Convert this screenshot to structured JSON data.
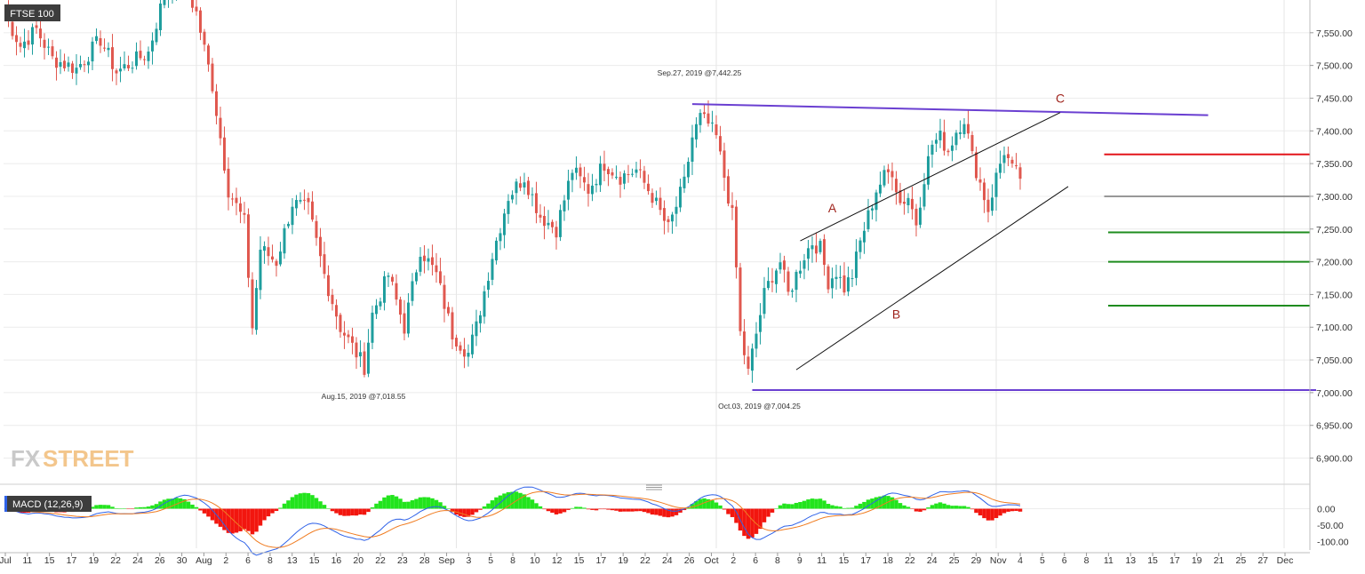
{
  "symbol": "FTSE 100",
  "macd_label": "MACD (12,26,9)",
  "watermark": {
    "part1": "FX",
    "part2": "STREET"
  },
  "colors": {
    "up": "#1f9e9e",
    "down": "#e0584f",
    "resistance": "#6a3fd1",
    "support_low": "#6a3fd1",
    "red_level": "#e3151a",
    "green_level": "#1e8c1e",
    "grey_level": "#777777",
    "macd_line": "#2f62e8",
    "signal_line": "#f07c21",
    "hist_pos": "#22e41d",
    "hist_neg": "#f2160f",
    "wave_label": "#a0261f"
  },
  "chart_data": {
    "type": "candlestick",
    "price_axis": {
      "min": 6860,
      "max": 7600,
      "ticks": [
        "6,900.00",
        "6,950.00",
        "7,000.00",
        "7,050.00",
        "7,100.00",
        "7,150.00",
        "7,200.00",
        "7,250.00",
        "7,300.00",
        "7,350.00",
        "7,400.00",
        "7,450.00",
        "7,500.00",
        "7,550.00"
      ]
    },
    "macd_axis": {
      "min": -120,
      "max": 50,
      "ticks": [
        "0.00",
        "-50.00",
        "-100.00"
      ]
    },
    "x_ticks": [
      "Jul",
      "11",
      "15",
      "17",
      "19",
      "22",
      "24",
      "26",
      "30",
      "Aug",
      "2",
      "6",
      "8",
      "13",
      "15",
      "16",
      "20",
      "22",
      "23",
      "28",
      "Sep",
      "3",
      "5",
      "8",
      "10",
      "12",
      "15",
      "17",
      "19",
      "22",
      "24",
      "26",
      "Oct",
      "2",
      "6",
      "8",
      "9",
      "11",
      "15",
      "17",
      "18",
      "22",
      "24",
      "25",
      "29",
      "Nov",
      "4",
      "5",
      "6",
      "8",
      "11",
      "13",
      "15",
      "17",
      "19",
      "21",
      "25",
      "27",
      "Dec"
    ],
    "anchors": [
      [
        0,
        7580
      ],
      [
        4,
        7530
      ],
      [
        8,
        7555
      ],
      [
        12,
        7510
      ],
      [
        18,
        7495
      ],
      [
        24,
        7540
      ],
      [
        28,
        7490
      ],
      [
        36,
        7520
      ],
      [
        40,
        7610
      ],
      [
        44,
        7640
      ],
      [
        48,
        7580
      ],
      [
        52,
        7470
      ],
      [
        56,
        7310
      ],
      [
        60,
        7260
      ],
      [
        62,
        7100
      ],
      [
        64,
        7220
      ],
      [
        68,
        7200
      ],
      [
        72,
        7290
      ],
      [
        76,
        7280
      ],
      [
        80,
        7180
      ],
      [
        84,
        7100
      ],
      [
        88,
        7060
      ],
      [
        90,
        7040
      ],
      [
        92,
        7120
      ],
      [
        96,
        7180
      ],
      [
        100,
        7100
      ],
      [
        104,
        7220
      ],
      [
        108,
        7180
      ],
      [
        112,
        7090
      ],
      [
        116,
        7060
      ],
      [
        118,
        7100
      ],
      [
        122,
        7210
      ],
      [
        126,
        7300
      ],
      [
        130,
        7330
      ],
      [
        134,
        7270
      ],
      [
        138,
        7250
      ],
      [
        142,
        7340
      ],
      [
        146,
        7310
      ],
      [
        150,
        7350
      ],
      [
        154,
        7330
      ],
      [
        158,
        7340
      ],
      [
        162,
        7300
      ],
      [
        166,
        7250
      ],
      [
        170,
        7320
      ],
      [
        172,
        7390
      ],
      [
        174,
        7420
      ],
      [
        176,
        7410
      ],
      [
        178,
        7390
      ],
      [
        180,
        7330
      ],
      [
        182,
        7270
      ],
      [
        183,
        7190
      ],
      [
        184,
        7090
      ],
      [
        186,
        7030
      ],
      [
        188,
        7090
      ],
      [
        190,
        7150
      ],
      [
        192,
        7180
      ],
      [
        194,
        7200
      ],
      [
        196,
        7150
      ],
      [
        198,
        7180
      ],
      [
        200,
        7210
      ],
      [
        202,
        7230
      ],
      [
        204,
        7220
      ],
      [
        206,
        7170
      ],
      [
        208,
        7185
      ],
      [
        210,
        7160
      ],
      [
        212,
        7180
      ],
      [
        214,
        7230
      ],
      [
        216,
        7270
      ],
      [
        218,
        7310
      ],
      [
        220,
        7330
      ],
      [
        222,
        7340
      ],
      [
        224,
        7290
      ],
      [
        226,
        7300
      ],
      [
        228,
        7260
      ],
      [
        230,
        7330
      ],
      [
        232,
        7380
      ],
      [
        234,
        7390
      ],
      [
        236,
        7370
      ],
      [
        238,
        7400
      ],
      [
        240,
        7420
      ],
      [
        242,
        7360
      ],
      [
        244,
        7320
      ],
      [
        246,
        7280
      ],
      [
        248,
        7330
      ],
      [
        250,
        7370
      ],
      [
        252,
        7340
      ],
      [
        254,
        7330
      ]
    ],
    "annotations": [
      {
        "label": "Sep.27, 2019 @7,442.25",
        "i": 172,
        "price": 7442.25
      },
      {
        "label": "Aug.15, 2019 @7,018.55",
        "i": 88,
        "price": 7018.55
      },
      {
        "label": "Oct.03, 2019 @7,004.25",
        "i": 187,
        "price": 7004.25
      }
    ],
    "waves": [
      {
        "label": "A",
        "i": 207,
        "price": 7270
      },
      {
        "label": "B",
        "i": 223,
        "price": 7108
      },
      {
        "label": "C",
        "i": 264,
        "price": 7438
      }
    ],
    "trendlines": [
      {
        "role": "resistance",
        "from": [
          172,
          7441
        ],
        "to": [
          301,
          7424
        ]
      },
      {
        "role": "support_low",
        "from": [
          187,
          7004
        ],
        "to": [
          328,
          7004
        ]
      },
      {
        "role": "channel_upper",
        "from": [
          199,
          7232
        ],
        "to": [
          264,
          7428
        ]
      },
      {
        "role": "channel_lower",
        "from": [
          198,
          7035
        ],
        "to": [
          266,
          7315
        ]
      }
    ],
    "levels": [
      {
        "role": "red_level",
        "price": 7364,
        "from": 275
      },
      {
        "role": "grey_level",
        "price": 7300,
        "from": 275
      },
      {
        "role": "green_level",
        "price": 7245,
        "from": 276
      },
      {
        "role": "green_level",
        "price": 7200,
        "from": 276
      },
      {
        "role": "green_level",
        "price": 7133,
        "from": 276
      }
    ]
  }
}
